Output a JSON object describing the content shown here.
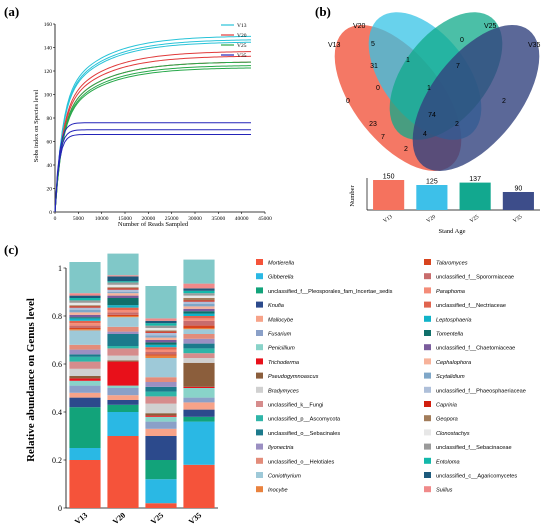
{
  "panels": {
    "a": "(a)",
    "b": "(b)",
    "c": "(c)"
  },
  "chart_data": [
    {
      "type": "line",
      "panel": "(a)",
      "xlabel": "Number of Reads Sampled",
      "ylabel": "Sobs index on Species level",
      "xlim": [
        0,
        45000
      ],
      "ylim": [
        0,
        160
      ],
      "xticks": [
        0,
        5000,
        10000,
        15000,
        20000,
        25000,
        30000,
        35000,
        40000,
        45000
      ],
      "yticks": [
        0,
        20,
        40,
        60,
        80,
        100,
        120,
        140,
        160
      ],
      "series": [
        {
          "name": "V13",
          "color": "#29c3d8",
          "curves": [
            150,
            147,
            145
          ]
        },
        {
          "name": "V20",
          "color": "#e03a3a",
          "curves": [
            137,
            133,
            128
          ]
        },
        {
          "name": "V25",
          "color": "#27a84a",
          "curves": [
            128,
            125,
            123
          ]
        },
        {
          "name": "V35",
          "color": "#2424b8",
          "curves": [
            76,
            70,
            66
          ]
        }
      ]
    },
    {
      "type": "venn",
      "panel": "(b)",
      "sets": [
        {
          "name": "V13",
          "color": "#f2604a"
        },
        {
          "name": "V20",
          "color": "#36c3e6"
        },
        {
          "name": "V25",
          "color": "#0fa98a"
        },
        {
          "name": "V35",
          "color": "#32427e"
        }
      ],
      "region_values": [
        "5",
        "0",
        "1",
        "7",
        "31",
        "0",
        "2",
        "1",
        "74",
        "0",
        "23",
        "2",
        "7",
        "4",
        "2"
      ]
    },
    {
      "type": "bar",
      "panel": "(b)",
      "categories": [
        "V13",
        "V20",
        "V25",
        "V35"
      ],
      "values": [
        150,
        125,
        137,
        90
      ],
      "colors": [
        "#f5725e",
        "#3dc0e9",
        "#12a88f",
        "#3d4d8a"
      ],
      "xlabel": "Stand Age",
      "ylabel": "Number",
      "ylim": [
        0,
        160
      ]
    },
    {
      "type": "stacked_bar",
      "panel": "(c)",
      "ylabel": "Relative abundance on Genus level",
      "ylim": [
        0,
        1
      ],
      "yticks": [
        0,
        0.2,
        0.4,
        0.6,
        0.8,
        1
      ],
      "categories": [
        "V13",
        "V20",
        "V25",
        "V35"
      ],
      "taxa": [
        {
          "name": "Mortierella",
          "color": "#f5533a",
          "values": [
            0.2,
            0.3,
            0.02,
            0.18
          ]
        },
        {
          "name": "Gibberella",
          "color": "#2ab8e4",
          "values": [
            0.05,
            0.1,
            0.1,
            0.18
          ]
        },
        {
          "name": "unclassified_f__Pleosporales_fam_Incertae_sedis",
          "color": "#12a37a",
          "values": [
            0.17,
            0.03,
            0.08,
            0.02
          ]
        },
        {
          "name": "Knufia",
          "color": "#2c4a8c",
          "values": [
            0.04,
            0.02,
            0.1,
            0.03
          ]
        },
        {
          "name": "Mallocybe",
          "color": "#f7a389",
          "values": [
            0.02,
            0.02,
            0.03,
            0.03
          ]
        },
        {
          "name": "Fusarium",
          "color": "#8aa0c8",
          "values": [
            0.03,
            0.03,
            0.03,
            0.02
          ]
        },
        {
          "name": "Penicillium",
          "color": "#89d3c9",
          "values": [
            0.02,
            0.01,
            0.02,
            0.04
          ]
        },
        {
          "name": "Trichoderma",
          "color": "#e8101a",
          "values": [
            0.01,
            0.1,
            0.005,
            0.005
          ]
        },
        {
          "name": "Pseudogymnoascus",
          "color": "#8b5e3c",
          "values": [
            0.01,
            0.005,
            0.01,
            0.1
          ]
        },
        {
          "name": "Bradymyces",
          "color": "#d0d0d0",
          "values": [
            0.03,
            0.02,
            0.04,
            0.02
          ]
        },
        {
          "name": "unclassified_k__Fungi",
          "color": "#d68c8c",
          "values": [
            0.03,
            0.03,
            0.03,
            0.02
          ]
        },
        {
          "name": "unclassified_p__Ascomycota",
          "color": "#2fb5a8",
          "values": [
            0.02,
            0.01,
            0.02,
            0.02
          ]
        },
        {
          "name": "unclassified_o__Sebacinales",
          "color": "#1c7a8c",
          "values": [
            0.01,
            0.05,
            0.02,
            0.02
          ]
        },
        {
          "name": "Ilyonectria",
          "color": "#9b8fc2",
          "values": [
            0.02,
            0.01,
            0.02,
            0.02
          ]
        },
        {
          "name": "unclassified_o__Helotiales",
          "color": "#e38c7a",
          "values": [
            0.02,
            0.02,
            0.02,
            0.02
          ]
        },
        {
          "name": "Coniothyrium",
          "color": "#9ec9d8",
          "values": [
            0.06,
            0.04,
            0.08,
            0.02
          ]
        },
        {
          "name": "Inocybe",
          "color": "#e9823e",
          "values": [
            0.005,
            0.005,
            0.01,
            0.005
          ]
        },
        {
          "name": "Talaromyces",
          "color": "#d8441e",
          "values": [
            0.005,
            0.005,
            0.005,
            0.01
          ]
        },
        {
          "name": "unclassified_f__Sporormiaceae",
          "color": "#c86c6c",
          "values": [
            0.01,
            0.01,
            0.01,
            0.02
          ]
        },
        {
          "name": "Paraphoma",
          "color": "#f48c78",
          "values": [
            0.01,
            0.01,
            0.01,
            0.01
          ]
        },
        {
          "name": "unclassified_f__Nectriaceae",
          "color": "#e0644e",
          "values": [
            0.01,
            0.01,
            0.01,
            0.01
          ]
        },
        {
          "name": "Leptosphaeria",
          "color": "#11b3c8",
          "values": [
            0.01,
            0.01,
            0.01,
            0.01
          ]
        },
        {
          "name": "Tomentella",
          "color": "#0f6f6a",
          "values": [
            0.005,
            0.03,
            0.01,
            0.01
          ]
        },
        {
          "name": "unclassified_f__Chaetomiaceae",
          "color": "#7a5c9c",
          "values": [
            0.01,
            0.01,
            0.01,
            0.01
          ]
        },
        {
          "name": "Cephalophora",
          "color": "#f7b29a",
          "values": [
            0.01,
            0.01,
            0.01,
            0.01
          ]
        },
        {
          "name": "Scytalidium",
          "color": "#7fa7c8",
          "values": [
            0.01,
            0.005,
            0.01,
            0.01
          ]
        },
        {
          "name": "unclassified_f__Phaeosphaeriaceae",
          "color": "#aebfd9",
          "values": [
            0.01,
            0.01,
            0.01,
            0.01
          ]
        },
        {
          "name": "Caprinia",
          "color": "#d11e0e",
          "values": [
            0.005,
            0.005,
            0.005,
            0.005
          ]
        },
        {
          "name": "Geopora",
          "color": "#a27c5a",
          "values": [
            0.005,
            0.005,
            0.005,
            0.01
          ]
        },
        {
          "name": "Clonostachys",
          "color": "#e7e7e7",
          "values": [
            0.01,
            0.01,
            0.01,
            0.01
          ]
        },
        {
          "name": "unclassified_f__Sebacinaceae",
          "color": "#9a9a9a",
          "values": [
            0.01,
            0.01,
            0.01,
            0.01
          ]
        },
        {
          "name": "Entoloma",
          "color": "#13b8aa",
          "values": [
            0.01,
            0.005,
            0.01,
            0.01
          ]
        },
        {
          "name": "unclassified_c__Agaricomycetes",
          "color": "#1d5a7c",
          "values": [
            0.01,
            0.02,
            0.01,
            0.01
          ]
        },
        {
          "name": "Suillus",
          "color": "#f08a8a",
          "values": [
            0.01,
            0.005,
            0.01,
            0.02
          ]
        },
        {
          "name": "Others",
          "color": "#80c8c8",
          "values": [
            0.13,
            0.09,
            0.135,
            0.1
          ]
        }
      ]
    }
  ]
}
